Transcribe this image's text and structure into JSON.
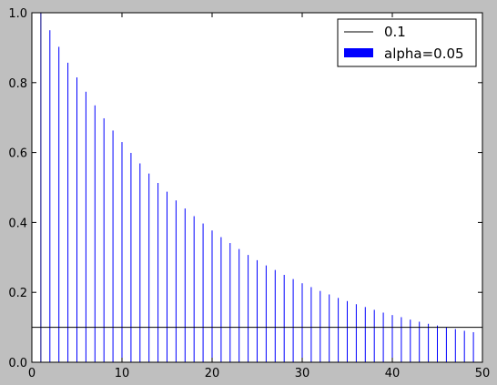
{
  "chart_data": {
    "type": "bar",
    "title": "",
    "xlabel": "",
    "ylabel": "",
    "xlim": [
      0,
      50
    ],
    "ylim": [
      0,
      1.0
    ],
    "grid": false,
    "legend_position": "top-right",
    "x_ticks": [
      "0",
      "10",
      "20",
      "30",
      "40",
      "50"
    ],
    "x_tick_values": [
      0,
      10,
      20,
      30,
      40,
      50
    ],
    "y_ticks": [
      "0.0",
      "0.2",
      "0.4",
      "0.6",
      "0.8",
      "1.0"
    ],
    "y_tick_values": [
      0.0,
      0.2,
      0.4,
      0.6,
      0.8,
      1.0
    ],
    "series": [
      {
        "name": "alpha=0.05",
        "kind": "bar",
        "color": "#0000ff",
        "x": [
          1,
          2,
          3,
          4,
          5,
          6,
          7,
          8,
          9,
          10,
          11,
          12,
          13,
          14,
          15,
          16,
          17,
          18,
          19,
          20,
          21,
          22,
          23,
          24,
          25,
          26,
          27,
          28,
          29,
          30,
          31,
          32,
          33,
          34,
          35,
          36,
          37,
          38,
          39,
          40,
          41,
          42,
          43,
          44,
          45,
          46,
          47,
          48,
          49,
          50
        ],
        "values": [
          1.0,
          0.95,
          0.9025,
          0.857,
          0.815,
          0.774,
          0.735,
          0.698,
          0.663,
          0.63,
          0.599,
          0.569,
          0.54,
          0.513,
          0.488,
          0.463,
          0.44,
          0.418,
          0.397,
          0.377,
          0.358,
          0.341,
          0.324,
          0.307,
          0.292,
          0.277,
          0.264,
          0.25,
          0.238,
          0.226,
          0.215,
          0.204,
          0.194,
          0.184,
          0.175,
          0.166,
          0.158,
          0.15,
          0.142,
          0.135,
          0.129,
          0.122,
          0.116,
          0.11,
          0.105,
          0.1,
          0.095,
          0.09,
          0.086,
          0.081
        ]
      },
      {
        "name": "0.1",
        "kind": "hline",
        "color": "#000000",
        "y": 0.1
      }
    ]
  }
}
